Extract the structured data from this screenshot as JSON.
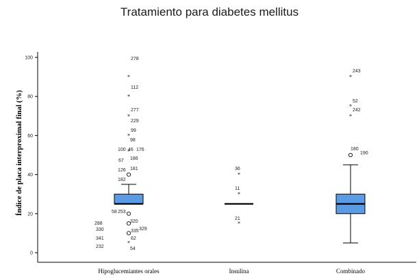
{
  "chart_data": {
    "type": "box",
    "title": "Tratamiento para diabetes mellitus",
    "xlabel": "",
    "ylabel": "Índice de placa interproximal final (%)",
    "ylim": [
      0,
      100
    ],
    "yticks": [
      0,
      20,
      40,
      60,
      80,
      100
    ],
    "grid": false,
    "categories": [
      "Hipoglucemiantes orales",
      "Insulina",
      "Combinado"
    ],
    "boxes": [
      {
        "category": "Hipoglucemiantes orales",
        "whisker_low": 25,
        "q1": 25,
        "median": 25,
        "q3": 30,
        "whisker_high": 35,
        "outliers": [
          {
            "label": "278",
            "y": 90,
            "type": "extreme"
          },
          {
            "label": "112",
            "y": 80,
            "type": "extreme"
          },
          {
            "label": "277",
            "y": 70,
            "type": "extreme"
          },
          {
            "label": "229",
            "y": 68,
            "type": "extreme",
            "no_mark": true
          },
          {
            "label": "99",
            "y": 60,
            "type": "extreme"
          },
          {
            "label": "98",
            "y": 58,
            "type": "extreme",
            "no_mark": true
          },
          {
            "label": "176",
            "y": 53,
            "type": "extreme",
            "no_mark": true
          },
          {
            "label": "100",
            "y": 52,
            "type": "extreme",
            "no_mark": true
          },
          {
            "label": "46",
            "y": 52,
            "type": "extreme"
          },
          {
            "label": "186",
            "y": 48,
            "type": "extreme",
            "no_mark": true
          },
          {
            "label": "67",
            "y": 47,
            "type": "extreme",
            "no_mark": true
          },
          {
            "label": "181",
            "y": 44,
            "type": "extreme",
            "no_mark": true
          },
          {
            "label": "126",
            "y": 43,
            "type": "extreme",
            "no_mark": true
          },
          {
            "label": "182",
            "y": 40,
            "type": "outlier"
          },
          {
            "label": "58",
            "y": 20,
            "type": "outlier"
          },
          {
            "label": "253",
            "y": 20,
            "type": "outlier",
            "no_mark": true
          },
          {
            "label": "320",
            "y": 15,
            "type": "outlier"
          },
          {
            "label": "288",
            "y": 15,
            "type": "outlier",
            "no_mark": true
          },
          {
            "label": "329",
            "y": 13,
            "type": "outlier",
            "no_mark": true
          },
          {
            "label": "335",
            "y": 12,
            "type": "outlier",
            "no_mark": true
          },
          {
            "label": "330",
            "y": 12,
            "type": "outlier",
            "no_mark": true
          },
          {
            "label": "62",
            "y": 10,
            "type": "outlier"
          },
          {
            "label": "341",
            "y": 8,
            "type": "extreme",
            "no_mark": true
          },
          {
            "label": "232",
            "y": 4,
            "type": "extreme",
            "no_mark": true
          },
          {
            "label": "54",
            "y": 5,
            "type": "extreme"
          }
        ]
      },
      {
        "category": "Insulina",
        "whisker_low": 25,
        "q1": 25,
        "median": 25,
        "q3": 25,
        "whisker_high": 25,
        "outliers": [
          {
            "label": "36",
            "y": 40,
            "type": "extreme"
          },
          {
            "label": "11",
            "y": 30,
            "type": "extreme"
          },
          {
            "label": "21",
            "y": 15,
            "type": "extreme"
          }
        ]
      },
      {
        "category": "Combinado",
        "whisker_low": 5,
        "q1": 20,
        "median": 25,
        "q3": 30,
        "whisker_high": 45,
        "outliers": [
          {
            "label": "243",
            "y": 90,
            "type": "extreme"
          },
          {
            "label": "52",
            "y": 75,
            "type": "extreme"
          },
          {
            "label": "242",
            "y": 70,
            "type": "extreme"
          },
          {
            "label": "180",
            "y": 50,
            "type": "outlier"
          },
          {
            "label": "190",
            "y": 50,
            "type": "outlier",
            "no_mark": true
          }
        ]
      }
    ]
  },
  "colors": {
    "box_fill": "#5b9be6",
    "box_stroke": "#000000",
    "axis": "#000000"
  }
}
